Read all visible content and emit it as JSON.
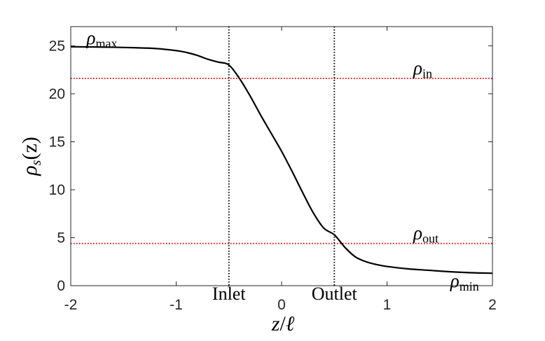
{
  "chart_data": {
    "type": "line",
    "xlabel": {
      "var": "z",
      "sep": "/",
      "den": "ℓ"
    },
    "ylabel": {
      "sym": "ρ",
      "sub": "s",
      "arg": "(z)"
    },
    "xlim": [
      -2,
      2
    ],
    "ylim": [
      0,
      27
    ],
    "xticks": [
      -2,
      -1,
      0,
      1,
      2
    ],
    "xtick_labels": [
      "-2",
      "-1",
      "0",
      "1",
      "2"
    ],
    "yticks": [
      0,
      5,
      10,
      15,
      20,
      25
    ],
    "ytick_labels": [
      "0",
      "5",
      "10",
      "15",
      "20",
      "25"
    ],
    "grid": false,
    "series": [
      {
        "color": "#000000",
        "x": [
          -2.0,
          -1.8,
          -1.6,
          -1.4,
          -1.2,
          -1.0,
          -0.9,
          -0.8,
          -0.7,
          -0.6,
          -0.5,
          -0.4,
          -0.3,
          -0.2,
          -0.1,
          0.0,
          0.1,
          0.2,
          0.3,
          0.4,
          0.5,
          0.6,
          0.7,
          0.8,
          0.9,
          1.0,
          1.2,
          1.4,
          1.6,
          1.8,
          2.0
        ],
        "y": [
          24.9,
          24.88,
          24.85,
          24.8,
          24.72,
          24.5,
          24.3,
          24.0,
          23.6,
          23.3,
          23.0,
          21.6,
          19.8,
          17.8,
          15.9,
          14.0,
          11.9,
          9.7,
          7.6,
          6.0,
          5.3,
          4.0,
          3.0,
          2.5,
          2.2,
          2.0,
          1.75,
          1.6,
          1.45,
          1.35,
          1.3
        ]
      }
    ],
    "vlines": [
      {
        "x": -0.5,
        "label": "Inlet",
        "color": "#000000"
      },
      {
        "x": 0.5,
        "label": "Outlet",
        "color": "#000000"
      }
    ],
    "hlines": [
      {
        "y": 21.6,
        "sym": "ρ",
        "sub": "in",
        "color": "#ff0000"
      },
      {
        "y": 4.4,
        "sym": "ρ",
        "sub": "out",
        "color": "#ff0000"
      }
    ],
    "annotations": [
      {
        "sym": "ρ",
        "sub": "max",
        "x": -1.95,
        "y": 25.9
      },
      {
        "sym": "ρ",
        "sub": "min",
        "x": 1.6,
        "y": 0.0
      }
    ]
  }
}
